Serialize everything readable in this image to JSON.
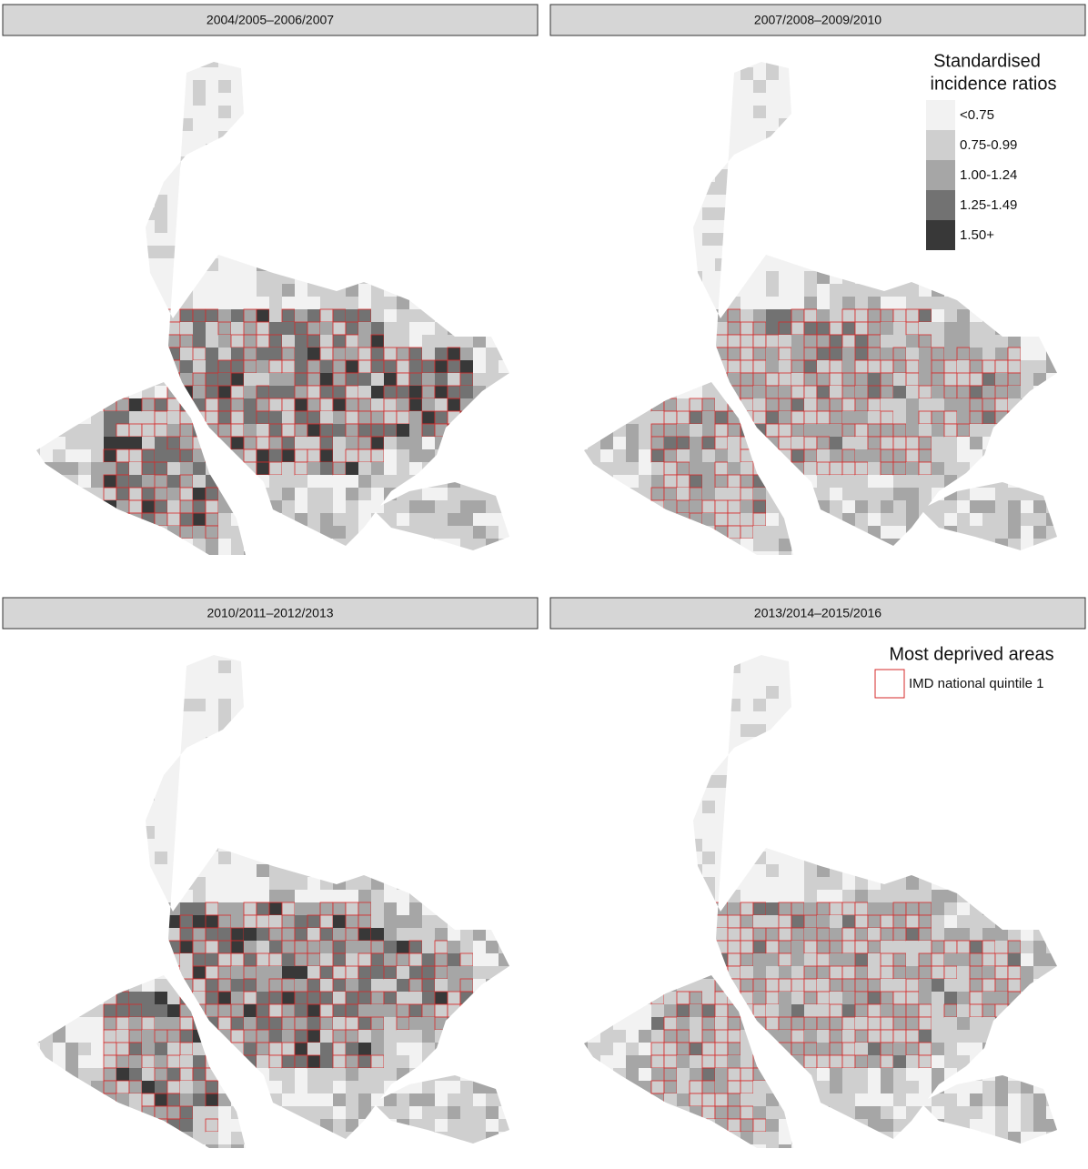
{
  "panels": [
    {
      "title": "2004/2005–2006/2007"
    },
    {
      "title": "2007/2008–2009/2010"
    },
    {
      "title": "2010/2011–2012/2013"
    },
    {
      "title": "2013/2014–2015/2016"
    }
  ],
  "ratio_legend": {
    "title_lines": [
      "Standardised",
      "incidence ratios"
    ],
    "categories": [
      "<0.75",
      "0.75-0.99",
      "1.00-1.24",
      "1.25-1.49",
      "1.50+"
    ],
    "colors": [
      "#f2f2f2",
      "#cfcfcf",
      "#a6a6a6",
      "#727272",
      "#383838"
    ]
  },
  "deprivation_legend": {
    "title": "Most deprived areas",
    "entry": "IMD national quintile 1",
    "color": "#d62a2a"
  }
}
